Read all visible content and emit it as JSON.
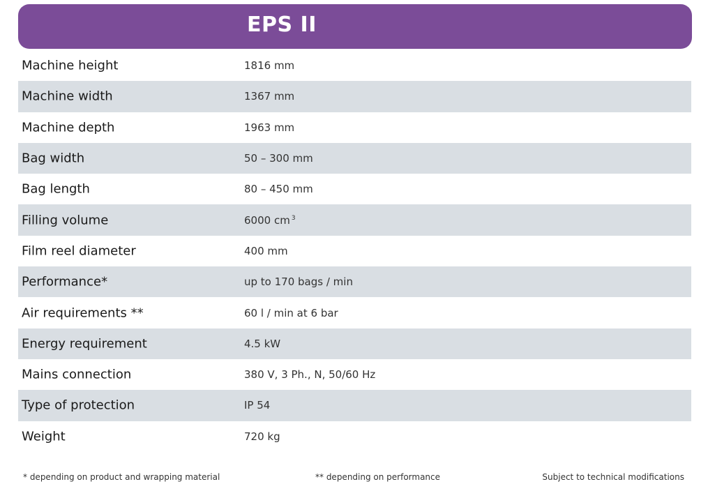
{
  "header": {
    "title": "EPS II",
    "color": "#7b4c98"
  },
  "specs": [
    {
      "label": "Machine height",
      "value": "1816 mm"
    },
    {
      "label": "Machine width",
      "value": "1367 mm"
    },
    {
      "label": "Machine depth",
      "value": "1963 mm"
    },
    {
      "label": "Bag width",
      "value": "50 – 300 mm"
    },
    {
      "label": "Bag length",
      "value": "80 – 450 mm"
    },
    {
      "label": "Filling volume",
      "value": "6000 cm",
      "sup": "3"
    },
    {
      "label": "Film reel diameter",
      "value": "400 mm"
    },
    {
      "label": "Performance*",
      "value": "up to 170 bags / min"
    },
    {
      "label": "Air requirements **",
      "value": "60 l / min at 6 bar"
    },
    {
      "label": "Energy requirement",
      "value": "4.5 kW"
    },
    {
      "label": "Mains connection",
      "value": "380 V, 3 Ph., N, 50/60 Hz"
    },
    {
      "label": "Type of protection",
      "value": "IP 54"
    },
    {
      "label": "Weight",
      "value": "720 kg"
    }
  ],
  "footnotes": {
    "note1": "* depending on product and wrapping material",
    "note2": "** depending on performance",
    "note3": "Subject to technical modifications"
  },
  "colors": {
    "row_shade": "#d9dee3",
    "text": "#1a1a1a"
  }
}
